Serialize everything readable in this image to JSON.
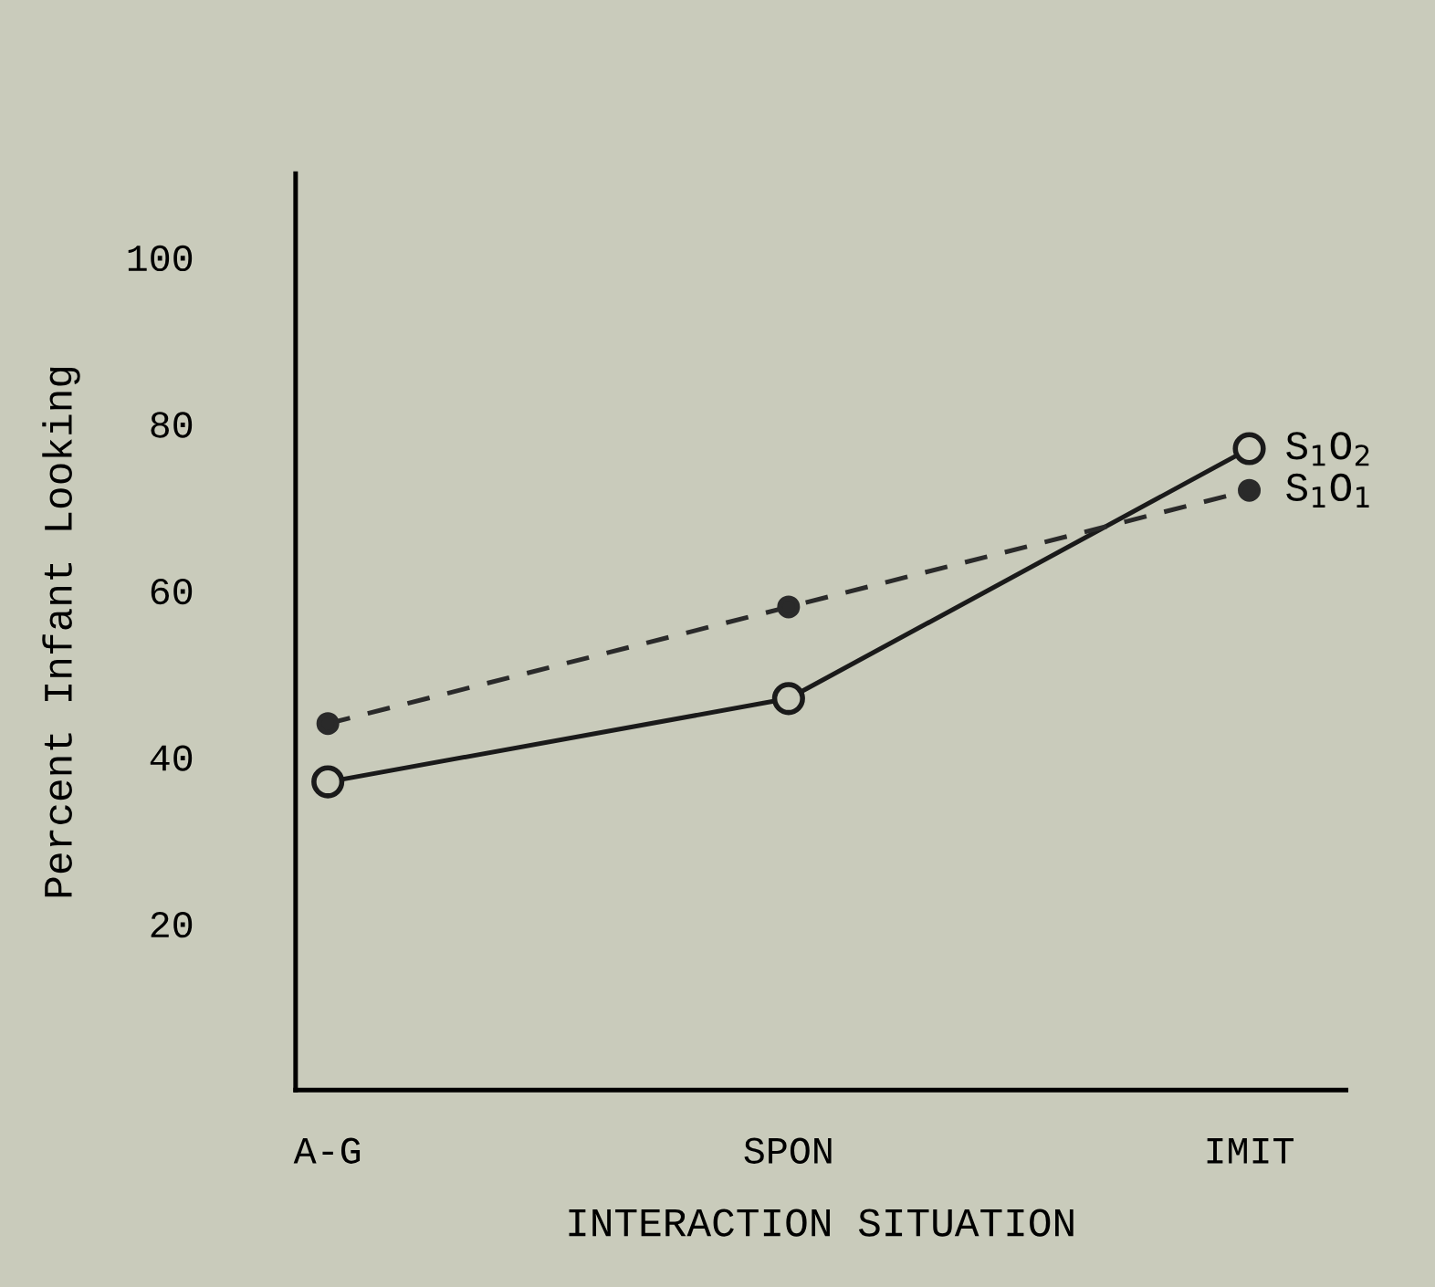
{
  "chart_data": {
    "type": "line",
    "xlabel": "INTERACTION SITUATION",
    "ylabel": "Percent Infant Looking",
    "categories": [
      "A-G",
      "SPON",
      "IMIT"
    ],
    "series": [
      {
        "name": "S$_{1}$O$_{2}$",
        "color": "#1a1a1a",
        "values": [
          37,
          47,
          77
        ],
        "line_style": "solid",
        "marker": "circle"
      },
      {
        "name": "S$_{1}$O$_{1}$",
        "color": "#2a2a2a",
        "values": [
          44,
          58,
          72
        ],
        "line_style": "dashed",
        "marker": "circle"
      }
    ],
    "ylim": [
      0,
      110
    ],
    "yticks": [
      20,
      40,
      60,
      80,
      100
    ],
    "grid": false,
    "legend": false
  }
}
